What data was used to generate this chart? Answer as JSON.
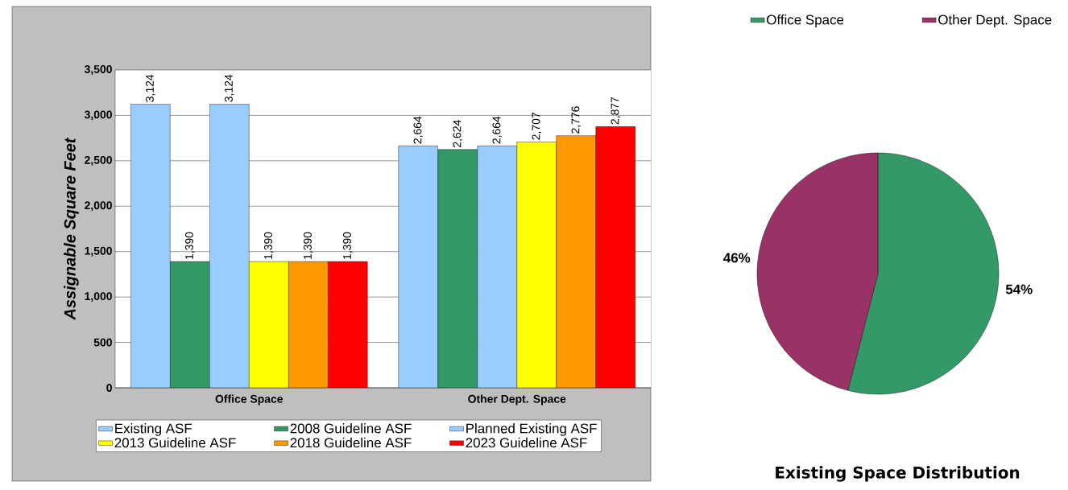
{
  "chart_data": [
    {
      "type": "bar",
      "ylabel": "Assignable Square Feet",
      "categories": [
        "Office Space",
        "Other Dept. Space"
      ],
      "series": [
        {
          "name": "Existing ASF",
          "color": "#99ccff",
          "values": [
            3124,
            2664
          ],
          "value_labels": [
            "3,124",
            "2,664"
          ]
        },
        {
          "name": "2008 Guideline ASF",
          "color": "#339966",
          "values": [
            1390,
            2624
          ],
          "value_labels": [
            "1,390",
            "2,624"
          ]
        },
        {
          "name": "Planned Existing ASF",
          "color": "#99ccff",
          "values": [
            3124,
            2664
          ],
          "value_labels": [
            "3,124",
            "2,664"
          ]
        },
        {
          "name": "2013 Guideline ASF",
          "color": "#ffff00",
          "values": [
            1390,
            2707
          ],
          "value_labels": [
            "1,390",
            "2,707"
          ]
        },
        {
          "name": "2018 Guideline ASF",
          "color": "#ff9900",
          "values": [
            1390,
            2776
          ],
          "value_labels": [
            "1,390",
            "2,776"
          ]
        },
        {
          "name": "2023 Guideline ASF",
          "color": "#ff0000",
          "values": [
            1390,
            2877
          ],
          "value_labels": [
            "1,390",
            "2,877"
          ]
        }
      ],
      "ylim": [
        0,
        3500
      ],
      "yticks": [
        0,
        500,
        {
          "value": 1000,
          "label": "1,000"
        },
        {
          "value": 1500,
          "label": "1,500"
        },
        {
          "value": 2000,
          "label": "2,000"
        },
        {
          "value": 2500,
          "label": "2,500"
        },
        {
          "value": 3000,
          "label": "3,000"
        },
        {
          "value": 3500,
          "label": "3,500"
        }
      ],
      "grid": "y",
      "legend": "bottom"
    },
    {
      "type": "pie",
      "title": "Existing Space Distribution",
      "categories": [
        "Office Space",
        "Other Dept. Space"
      ],
      "values": [
        54,
        46
      ],
      "colors": [
        "#339966",
        "#993366"
      ],
      "value_labels": [
        "54%",
        "46%"
      ],
      "legend": "top"
    }
  ]
}
